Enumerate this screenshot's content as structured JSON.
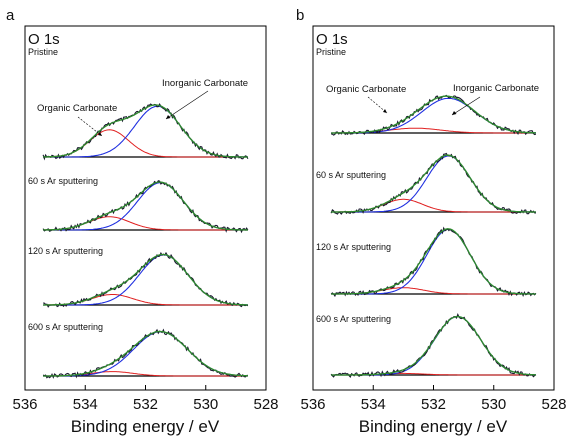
{
  "figure": {
    "panels": [
      {
        "letter": "a",
        "header": "O 1s",
        "xlim": [
          536,
          528
        ],
        "xticks": [
          536,
          534,
          532,
          530,
          528
        ],
        "xlabel": "Binding energy / eV",
        "annotations": {
          "organic": "Organic Carbonate",
          "inorganic": "Inorganic Carbonate"
        },
        "spectra": [
          {
            "label": "Pristine",
            "organic": {
              "center": 533.2,
              "fwhm": 1.5,
              "amp": 0.3
            },
            "inorganic": {
              "center": 531.6,
              "fwhm": 1.8,
              "amp": 0.56
            }
          },
          {
            "label": "60 s Ar sputtering",
            "organic": {
              "center": 533.2,
              "fwhm": 1.6,
              "amp": 0.14
            },
            "inorganic": {
              "center": 531.5,
              "fwhm": 1.8,
              "amp": 0.5
            }
          },
          {
            "label": "120 s Ar sputtering",
            "organic": {
              "center": 533.1,
              "fwhm": 1.6,
              "amp": 0.12
            },
            "inorganic": {
              "center": 531.4,
              "fwhm": 1.9,
              "amp": 0.57
            }
          },
          {
            "label": "600 s Ar sputtering",
            "organic": {
              "center": 533.1,
              "fwhm": 1.6,
              "amp": 0.05
            },
            "inorganic": {
              "center": 531.5,
              "fwhm": 2.1,
              "amp": 0.5
            }
          }
        ]
      },
      {
        "letter": "b",
        "header": "O 1s",
        "xlim": [
          536,
          528
        ],
        "xticks": [
          536,
          534,
          532,
          530,
          528
        ],
        "xlabel": "Binding energy / eV",
        "annotations": {
          "organic": "Organic Carbonate",
          "inorganic": "Inorganic Carbonate"
        },
        "spectra": [
          {
            "label": "Pristine",
            "organic": {
              "center": 532.6,
              "fwhm": 2.0,
              "amp": 0.05
            },
            "inorganic": {
              "center": 531.5,
              "fwhm": 2.1,
              "amp": 0.36
            }
          },
          {
            "label": "60 s Ar sputtering",
            "organic": {
              "center": 533.0,
              "fwhm": 1.5,
              "amp": 0.17
            },
            "inorganic": {
              "center": 531.5,
              "fwhm": 1.7,
              "amp": 0.75
            }
          },
          {
            "label": "120 s Ar sputtering",
            "organic": {
              "center": 533.0,
              "fwhm": 1.6,
              "amp": 0.08
            },
            "inorganic": {
              "center": 531.5,
              "fwhm": 1.7,
              "amp": 0.82
            }
          },
          {
            "label": "600 s Ar sputtering",
            "organic": {
              "center": 533.0,
              "fwhm": 1.6,
              "amp": 0.02
            },
            "inorganic": {
              "center": 531.2,
              "fwhm": 1.8,
              "amp": 0.75
            }
          }
        ]
      }
    ]
  },
  "chart_data": [
    {
      "type": "line",
      "panel": "a",
      "title": "O 1s",
      "xlabel": "Binding energy / eV",
      "ylabel": "",
      "xlim": [
        536,
        528
      ],
      "x_ticks": [
        536,
        534,
        532,
        530,
        528
      ],
      "series": [
        {
          "name": "Pristine",
          "components": [
            "Organic Carbonate",
            "Inorganic Carbonate"
          ]
        },
        {
          "name": "60 s Ar sputtering"
        },
        {
          "name": "120 s Ar sputtering"
        },
        {
          "name": "600 s Ar sputtering"
        }
      ]
    },
    {
      "type": "line",
      "panel": "b",
      "title": "O 1s",
      "xlabel": "Binding energy / eV",
      "ylabel": "",
      "xlim": [
        536,
        528
      ],
      "x_ticks": [
        536,
        534,
        532,
        530,
        528
      ],
      "series": [
        {
          "name": "Pristine",
          "components": [
            "Organic Carbonate",
            "Inorganic Carbonate"
          ]
        },
        {
          "name": "60 s Ar sputtering"
        },
        {
          "name": "120 s Ar sputtering"
        },
        {
          "name": "600 s Ar sputtering"
        }
      ]
    }
  ],
  "colors": {
    "raw": "#1a1a2e",
    "envelope": "#2e8b2e",
    "organic": "#e02020",
    "inorganic": "#2030e0",
    "baseline": "#000000"
  }
}
